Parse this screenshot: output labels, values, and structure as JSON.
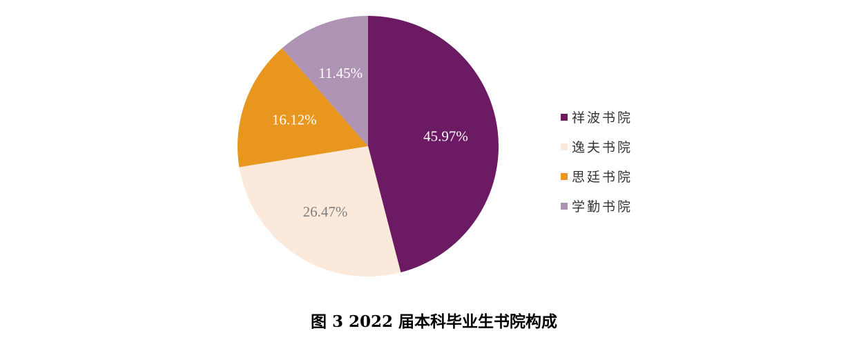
{
  "chart_data": {
    "type": "pie",
    "title": "图 3 2022 届本科毕业生书院构成",
    "start_angle_deg": 0,
    "direction": "clockwise",
    "legend_position": "right",
    "slices": [
      {
        "name": "祥波书院",
        "value": 45.97,
        "label": "45.97%",
        "color": "#6b1a63",
        "label_color": "#ffffff"
      },
      {
        "name": "逸夫书院",
        "value": 26.47,
        "label": "26.47%",
        "color": "#fbeadb",
        "label_color": "#7f7f7f"
      },
      {
        "name": "思廷书院",
        "value": 16.12,
        "label": "16.12%",
        "color": "#e8961e",
        "label_color": "#ffffff"
      },
      {
        "name": "学勤书院",
        "value": 11.45,
        "label": "11.45%",
        "color": "#ae93b4",
        "label_color": "#ffffff"
      }
    ]
  },
  "caption": "图 3  2022 届本科毕业生书院构成"
}
